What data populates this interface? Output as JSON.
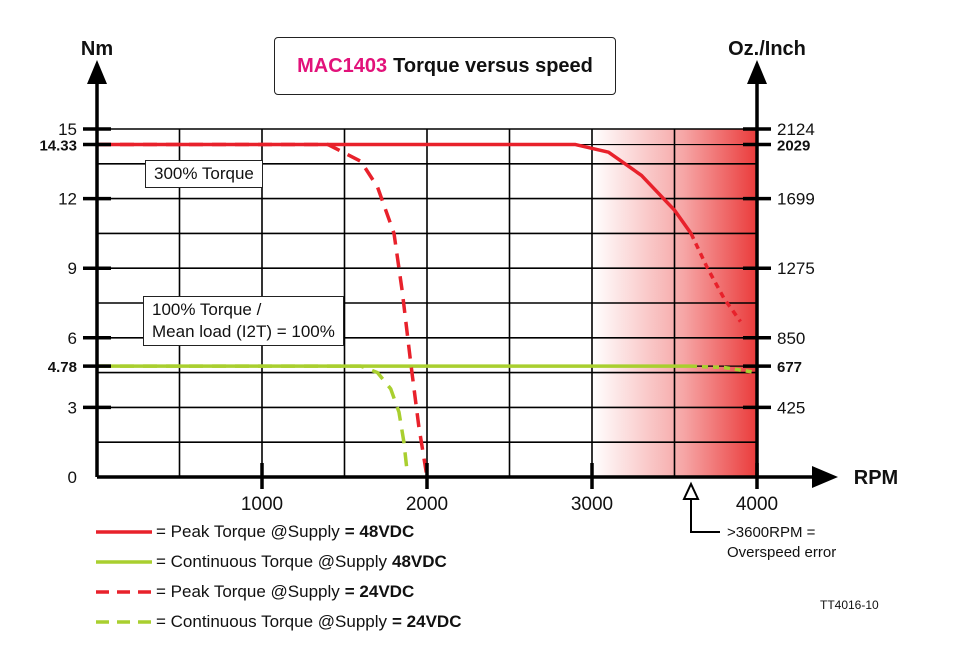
{
  "chart_data": {
    "type": "line",
    "title_model": "MAC1403",
    "title_text": "Torque versus speed",
    "xlabel": "RPM",
    "ylabel_left": "Nm",
    "ylabel_right": "Oz./Inch",
    "xlim": [
      0,
      4000
    ],
    "ylim": [
      0,
      15
    ],
    "x_ticks": [
      1000,
      2000,
      3000,
      4000
    ],
    "y_ticks_left": [
      {
        "value": 0,
        "label": "0",
        "bold": false
      },
      {
        "value": 3,
        "label": "3",
        "bold": false
      },
      {
        "value": 4.78,
        "label": "4.78",
        "bold": true
      },
      {
        "value": 6,
        "label": "6",
        "bold": false
      },
      {
        "value": 9,
        "label": "9",
        "bold": false
      },
      {
        "value": 12,
        "label": "12",
        "bold": false
      },
      {
        "value": 14.33,
        "label": "14.33",
        "bold": true
      },
      {
        "value": 15,
        "label": "15",
        "bold": false
      }
    ],
    "y_ticks_right": [
      {
        "value": 3,
        "label": "425",
        "bold": false
      },
      {
        "value": 4.78,
        "label": "677",
        "bold": true
      },
      {
        "value": 6,
        "label": "850",
        "bold": false
      },
      {
        "value": 9,
        "label": "1275",
        "bold": false
      },
      {
        "value": 12,
        "label": "1699",
        "bold": false
      },
      {
        "value": 14.33,
        "label": "2029",
        "bold": true
      },
      {
        "value": 15,
        "label": "2124",
        "bold": false
      }
    ],
    "grid": true,
    "overspeed_zone": {
      "start": 3000,
      "end": 4000,
      "marker": 3600
    },
    "series": [
      {
        "name": "Peak Torque @Supply",
        "supply": "= 48VDC",
        "style": "solid",
        "color": "#e8212b",
        "x": [
          0,
          2900,
          3100,
          3300,
          3500,
          3600
        ],
        "y": [
          14.33,
          14.33,
          14.0,
          13.0,
          11.5,
          10.5
        ],
        "tail_x": [
          3600,
          3700,
          3800,
          3900
        ],
        "tail_y": [
          10.5,
          9.0,
          7.7,
          6.7
        ]
      },
      {
        "name": "Continuous Torque @Supply",
        "supply": "48VDC",
        "style": "solid",
        "color": "#a9cf2f",
        "x": [
          0,
          3600
        ],
        "y": [
          4.78,
          4.78
        ],
        "tail_x": [
          3600,
          3800,
          4000
        ],
        "tail_y": [
          4.78,
          4.72,
          4.5
        ]
      },
      {
        "name": "Peak Torque @Supply",
        "supply": "= 24VDC",
        "style": "dashed",
        "color": "#e8212b",
        "x": [
          0,
          1400,
          1600,
          1700,
          1800,
          1850,
          1900,
          1950,
          2000
        ],
        "y": [
          14.33,
          14.33,
          13.6,
          12.5,
          10.5,
          8.0,
          5.0,
          2.2,
          0
        ]
      },
      {
        "name": "Continuous Torque @Supply",
        "supply": "= 24VDC",
        "style": "dashed",
        "color": "#a9cf2f",
        "x": [
          0,
          1600,
          1700,
          1780,
          1830,
          1860,
          1880
        ],
        "y": [
          4.78,
          4.78,
          4.5,
          3.8,
          2.8,
          1.5,
          0.2
        ]
      }
    ]
  },
  "annotations": {
    "peak_label": "300% Torque",
    "cont_label_1": "100% Torque /",
    "cont_label_2": "Mean load (I2T) = 100%",
    "overspeed_1": ">3600RPM =",
    "overspeed_2": "Overspeed error",
    "ref_code": "TT4016-10"
  },
  "legend": [
    {
      "style": "solid",
      "color": "#e8212b",
      "text": "= Peak Torque @Supply",
      "bold": "= 48VDC"
    },
    {
      "style": "solid",
      "color": "#a9cf2f",
      "text": "= Continuous Torque @Supply",
      "bold": "48VDC"
    },
    {
      "style": "dashed",
      "color": "#e8212b",
      "text": "= Peak Torque @Supply",
      "bold": "= 24VDC"
    },
    {
      "style": "dashed",
      "color": "#a9cf2f",
      "text": "= Continuous Torque @Supply",
      "bold": "= 24VDC"
    }
  ]
}
